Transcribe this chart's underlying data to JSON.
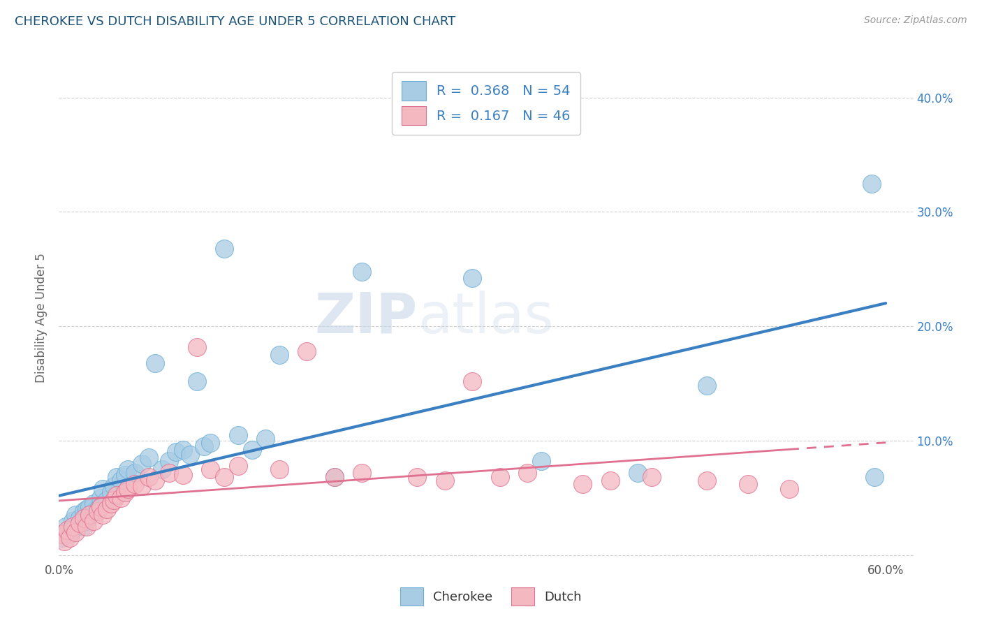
{
  "title": "CHEROKEE VS DUTCH DISABILITY AGE UNDER 5 CORRELATION CHART",
  "source_text": "Source: ZipAtlas.com",
  "ylabel": "Disability Age Under 5",
  "xlim": [
    0.0,
    0.62
  ],
  "ylim": [
    -0.005,
    0.42
  ],
  "xticks": [
    0.0,
    0.1,
    0.2,
    0.3,
    0.4,
    0.5,
    0.6
  ],
  "xticklabels": [
    "0.0%",
    "",
    "",
    "",
    "",
    "",
    "60.0%"
  ],
  "yticks": [
    0.0,
    0.1,
    0.2,
    0.3,
    0.4
  ],
  "yticklabels_right": [
    "",
    "10.0%",
    "20.0%",
    "30.0%",
    "40.0%"
  ],
  "cherokee_color": "#a8cce4",
  "dutch_color": "#f4b8c1",
  "cherokee_edge_color": "#6baed6",
  "dutch_edge_color": "#e07090",
  "cherokee_line_color": "#3a7fc1",
  "dutch_line_color": "#e07090",
  "cherokee_R": 0.368,
  "cherokee_N": 54,
  "dutch_R": 0.167,
  "dutch_N": 46,
  "watermark_zip": "ZIP",
  "watermark_atlas": "atlas",
  "cherokee_x": [
    0.002,
    0.005,
    0.005,
    0.008,
    0.01,
    0.01,
    0.012,
    0.012,
    0.015,
    0.015,
    0.018,
    0.018,
    0.02,
    0.02,
    0.022,
    0.022,
    0.025,
    0.025,
    0.028,
    0.03,
    0.03,
    0.032,
    0.035,
    0.038,
    0.04,
    0.042,
    0.045,
    0.048,
    0.05,
    0.055,
    0.06,
    0.065,
    0.07,
    0.075,
    0.08,
    0.085,
    0.09,
    0.095,
    0.1,
    0.105,
    0.11,
    0.12,
    0.13,
    0.14,
    0.15,
    0.16,
    0.2,
    0.22,
    0.3,
    0.35,
    0.42,
    0.47,
    0.59,
    0.592
  ],
  "cherokee_y": [
    0.015,
    0.02,
    0.025,
    0.018,
    0.022,
    0.03,
    0.025,
    0.035,
    0.028,
    0.032,
    0.025,
    0.038,
    0.03,
    0.04,
    0.035,
    0.042,
    0.038,
    0.045,
    0.04,
    0.05,
    0.042,
    0.058,
    0.048,
    0.055,
    0.06,
    0.068,
    0.065,
    0.07,
    0.075,
    0.072,
    0.08,
    0.085,
    0.168,
    0.075,
    0.082,
    0.09,
    0.092,
    0.088,
    0.152,
    0.095,
    0.098,
    0.268,
    0.105,
    0.092,
    0.102,
    0.175,
    0.068,
    0.248,
    0.242,
    0.082,
    0.072,
    0.148,
    0.325,
    0.068
  ],
  "dutch_x": [
    0.002,
    0.004,
    0.006,
    0.008,
    0.01,
    0.012,
    0.015,
    0.018,
    0.02,
    0.022,
    0.025,
    0.028,
    0.03,
    0.032,
    0.035,
    0.038,
    0.04,
    0.042,
    0.045,
    0.048,
    0.05,
    0.055,
    0.06,
    0.065,
    0.07,
    0.08,
    0.09,
    0.1,
    0.11,
    0.12,
    0.13,
    0.16,
    0.18,
    0.2,
    0.22,
    0.26,
    0.28,
    0.3,
    0.32,
    0.34,
    0.38,
    0.4,
    0.43,
    0.47,
    0.5,
    0.53
  ],
  "dutch_y": [
    0.018,
    0.012,
    0.022,
    0.015,
    0.025,
    0.02,
    0.028,
    0.032,
    0.025,
    0.035,
    0.03,
    0.038,
    0.042,
    0.035,
    0.04,
    0.045,
    0.048,
    0.052,
    0.05,
    0.055,
    0.058,
    0.062,
    0.06,
    0.068,
    0.065,
    0.072,
    0.07,
    0.182,
    0.075,
    0.068,
    0.078,
    0.075,
    0.178,
    0.068,
    0.072,
    0.068,
    0.065,
    0.152,
    0.068,
    0.072,
    0.062,
    0.065,
    0.068,
    0.065,
    0.062,
    0.058
  ],
  "background_color": "#ffffff",
  "grid_color": "#d0d0d0",
  "title_color": "#1a5276",
  "source_color": "#999999",
  "legend_text_color": "#3a7fc1",
  "legend_label_color": "#333333"
}
